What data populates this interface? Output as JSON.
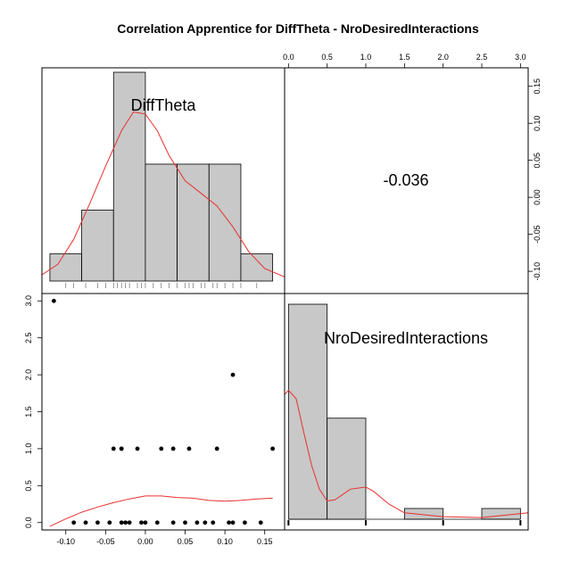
{
  "chart_data": {
    "type": "pairs",
    "title": "Correlation Apprentice for DiffTheta - NroDesiredInteractions",
    "variables": [
      "DiffTheta",
      "NroDesiredInteractions"
    ],
    "correlation": {
      "label": "-0.036",
      "value": -0.036
    },
    "difftheta_xlim": [
      -0.13,
      0.175
    ],
    "difftheta_ticks": [
      -0.1,
      -0.05,
      0.0,
      0.05,
      0.1,
      0.15
    ],
    "difftheta_tick_labels": [
      "-0.10",
      "-0.05",
      "0.00",
      "0.05",
      "0.10",
      "0.15"
    ],
    "nro_xlim": [
      -0.05,
      3.1
    ],
    "nro_ticks": [
      0.0,
      0.5,
      1.0,
      1.5,
      2.0,
      2.5,
      3.0
    ],
    "nro_tick_labels": [
      "0.0",
      "0.5",
      "1.0",
      "1.5",
      "2.0",
      "2.5",
      "3.0"
    ],
    "difftheta_histogram": {
      "bin_edges": [
        -0.12,
        -0.08,
        -0.04,
        0.0,
        0.04,
        0.08,
        0.12,
        0.16
      ],
      "relative_heights": [
        0.13,
        0.34,
        1.0,
        0.56,
        0.56,
        0.56,
        0.13
      ],
      "fill": "#c8c8c8"
    },
    "difftheta_density": [
      [
        -0.13,
        0.03
      ],
      [
        -0.11,
        0.08
      ],
      [
        -0.09,
        0.2
      ],
      [
        -0.07,
        0.37
      ],
      [
        -0.05,
        0.55
      ],
      [
        -0.03,
        0.72
      ],
      [
        -0.015,
        0.81
      ],
      [
        0.0,
        0.8
      ],
      [
        0.015,
        0.72
      ],
      [
        0.03,
        0.6
      ],
      [
        0.05,
        0.48
      ],
      [
        0.07,
        0.42
      ],
      [
        0.09,
        0.36
      ],
      [
        0.11,
        0.26
      ],
      [
        0.13,
        0.14
      ],
      [
        0.15,
        0.06
      ],
      [
        0.175,
        0.02
      ]
    ],
    "difftheta_rug": [
      -0.1,
      -0.09,
      -0.075,
      -0.06,
      -0.05,
      -0.04,
      -0.035,
      -0.03,
      -0.025,
      -0.02,
      -0.01,
      -0.005,
      0.0,
      0.01,
      0.02,
      0.03,
      0.04,
      0.05,
      0.055,
      0.06,
      0.07,
      0.075,
      0.085,
      0.09,
      0.1,
      0.11,
      0.12,
      0.14
    ],
    "nro_histogram": {
      "bin_edges": [
        0.0,
        0.5,
        1.0,
        1.5,
        2.0,
        2.5,
        3.0
      ],
      "relative_heights": [
        1.0,
        0.47,
        0.0,
        0.05,
        0.0,
        0.05
      ],
      "fill": "#c8c8c8"
    },
    "nro_density": [
      [
        -0.05,
        0.58
      ],
      [
        0.0,
        0.6
      ],
      [
        0.1,
        0.56
      ],
      [
        0.2,
        0.4
      ],
      [
        0.3,
        0.25
      ],
      [
        0.4,
        0.14
      ],
      [
        0.5,
        0.085
      ],
      [
        0.6,
        0.09
      ],
      [
        0.8,
        0.14
      ],
      [
        1.0,
        0.15
      ],
      [
        1.1,
        0.13
      ],
      [
        1.3,
        0.07
      ],
      [
        1.5,
        0.03
      ],
      [
        2.0,
        0.012
      ],
      [
        2.5,
        0.008
      ],
      [
        3.1,
        0.03
      ]
    ],
    "nro_rug": [
      0.0,
      1.0,
      2.0,
      3.0
    ],
    "scatter_points": [
      [
        -0.115,
        3
      ],
      [
        0.11,
        2
      ],
      [
        -0.04,
        1
      ],
      [
        -0.03,
        1
      ],
      [
        -0.03,
        1
      ],
      [
        -0.01,
        1
      ],
      [
        0.02,
        1
      ],
      [
        0.035,
        1
      ],
      [
        0.055,
        1
      ],
      [
        0.09,
        1
      ],
      [
        0.16,
        1
      ],
      [
        -0.09,
        0
      ],
      [
        -0.075,
        0
      ],
      [
        -0.06,
        0
      ],
      [
        -0.045,
        0
      ],
      [
        -0.03,
        0
      ],
      [
        -0.025,
        0
      ],
      [
        -0.02,
        0
      ],
      [
        -0.005,
        0
      ],
      [
        0.0,
        0
      ],
      [
        0.015,
        0
      ],
      [
        0.035,
        0
      ],
      [
        0.05,
        0
      ],
      [
        0.065,
        0
      ],
      [
        0.075,
        0
      ],
      [
        0.085,
        0
      ],
      [
        0.105,
        0
      ],
      [
        0.11,
        0
      ],
      [
        0.125,
        0
      ],
      [
        0.145,
        0
      ]
    ],
    "scatter_ylim": [
      -0.1,
      3.1
    ],
    "scatter_yticks": [
      0.0,
      0.5,
      1.0,
      1.5,
      2.0,
      2.5,
      3.0
    ],
    "scatter_ytick_labels": [
      "0.0",
      "0.5",
      "1.0",
      "1.5",
      "2.0",
      "2.5",
      "3.0"
    ],
    "scatter_smooth": [
      [
        -0.12,
        -0.05
      ],
      [
        -0.1,
        0.05
      ],
      [
        -0.08,
        0.14
      ],
      [
        -0.06,
        0.21
      ],
      [
        -0.04,
        0.27
      ],
      [
        -0.02,
        0.32
      ],
      [
        0.0,
        0.36
      ],
      [
        0.02,
        0.36
      ],
      [
        0.04,
        0.34
      ],
      [
        0.06,
        0.33
      ],
      [
        0.08,
        0.3
      ],
      [
        0.1,
        0.29
      ],
      [
        0.12,
        0.3
      ],
      [
        0.14,
        0.32
      ],
      [
        0.16,
        0.33
      ]
    ],
    "corr_axis_ylim": [
      -0.13,
      0.175
    ],
    "smooth_color": "#e8302e",
    "grid": false
  }
}
